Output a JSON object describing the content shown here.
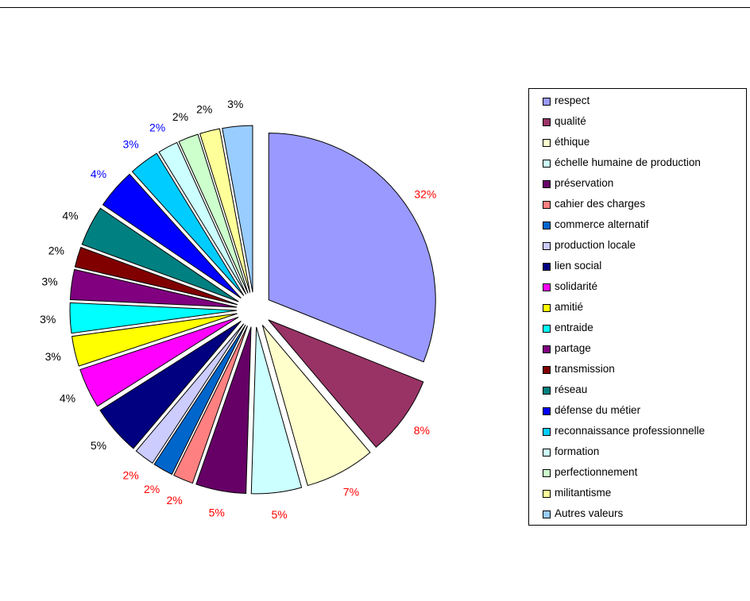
{
  "chart_data": {
    "type": "pie",
    "exploded": true,
    "legend_position": "right",
    "slices": [
      {
        "label": "respect",
        "value": 32,
        "value_label": "32%",
        "color": "#9999ff",
        "label_color": "#ff0000"
      },
      {
        "label": "qualité",
        "value": 8,
        "value_label": "8%",
        "color": "#993366",
        "label_color": "#ff0000"
      },
      {
        "label": "éthique",
        "value": 7,
        "value_label": "7%",
        "color": "#ffffcc",
        "label_color": "#ff0000"
      },
      {
        "label": "échelle humaine de production",
        "value": 5,
        "value_label": "5%",
        "color": "#ccffff",
        "label_color": "#ff0000"
      },
      {
        "label": "préservation",
        "value": 5,
        "value_label": "5%",
        "color": "#660066",
        "label_color": "#ff0000"
      },
      {
        "label": "cahier des charges",
        "value": 2,
        "value_label": "2%",
        "color": "#ff8080",
        "label_color": "#ff0000"
      },
      {
        "label": "commerce alternatif",
        "value": 2,
        "value_label": "2%",
        "color": "#0066cc",
        "label_color": "#ff0000"
      },
      {
        "label": "production locale",
        "value": 2,
        "value_label": "2%",
        "color": "#ccccff",
        "label_color": "#ff0000"
      },
      {
        "label": "lien social",
        "value": 5,
        "value_label": "5%",
        "color": "#000080",
        "label_color": "#000000"
      },
      {
        "label": "solidarité",
        "value": 4,
        "value_label": "4%",
        "color": "#ff00ff",
        "label_color": "#000000"
      },
      {
        "label": "amitié",
        "value": 3,
        "value_label": "3%",
        "color": "#ffff00",
        "label_color": "#000000"
      },
      {
        "label": "entraide",
        "value": 3,
        "value_label": "3%",
        "color": "#00ffff",
        "label_color": "#000000"
      },
      {
        "label": "partage",
        "value": 3,
        "value_label": "3%",
        "color": "#800080",
        "label_color": "#000000"
      },
      {
        "label": "transmission",
        "value": 2,
        "value_label": "2%",
        "color": "#800000",
        "label_color": "#000000"
      },
      {
        "label": "réseau",
        "value": 4,
        "value_label": "4%",
        "color": "#008080",
        "label_color": "#000000"
      },
      {
        "label": "défense du métier",
        "value": 4,
        "value_label": "4%",
        "color": "#0000ff",
        "label_color": "#0000ff"
      },
      {
        "label": "reconnaissance professionnelle",
        "value": 3,
        "value_label": "3%",
        "color": "#00ccff",
        "label_color": "#0000ff"
      },
      {
        "label": "formation",
        "value": 2,
        "value_label": "2%",
        "color": "#ccffff",
        "label_color": "#0000ff"
      },
      {
        "label": "perfectionnement",
        "value": 2,
        "value_label": "2%",
        "color": "#ccffcc",
        "label_color": "#000000"
      },
      {
        "label": "militantisme",
        "value": 2,
        "value_label": "2%",
        "color": "#ffff99",
        "label_color": "#000000"
      },
      {
        "label": "Autres valeurs",
        "value": 3,
        "value_label": "3%",
        "color": "#99ccff",
        "label_color": "#000000"
      }
    ]
  }
}
